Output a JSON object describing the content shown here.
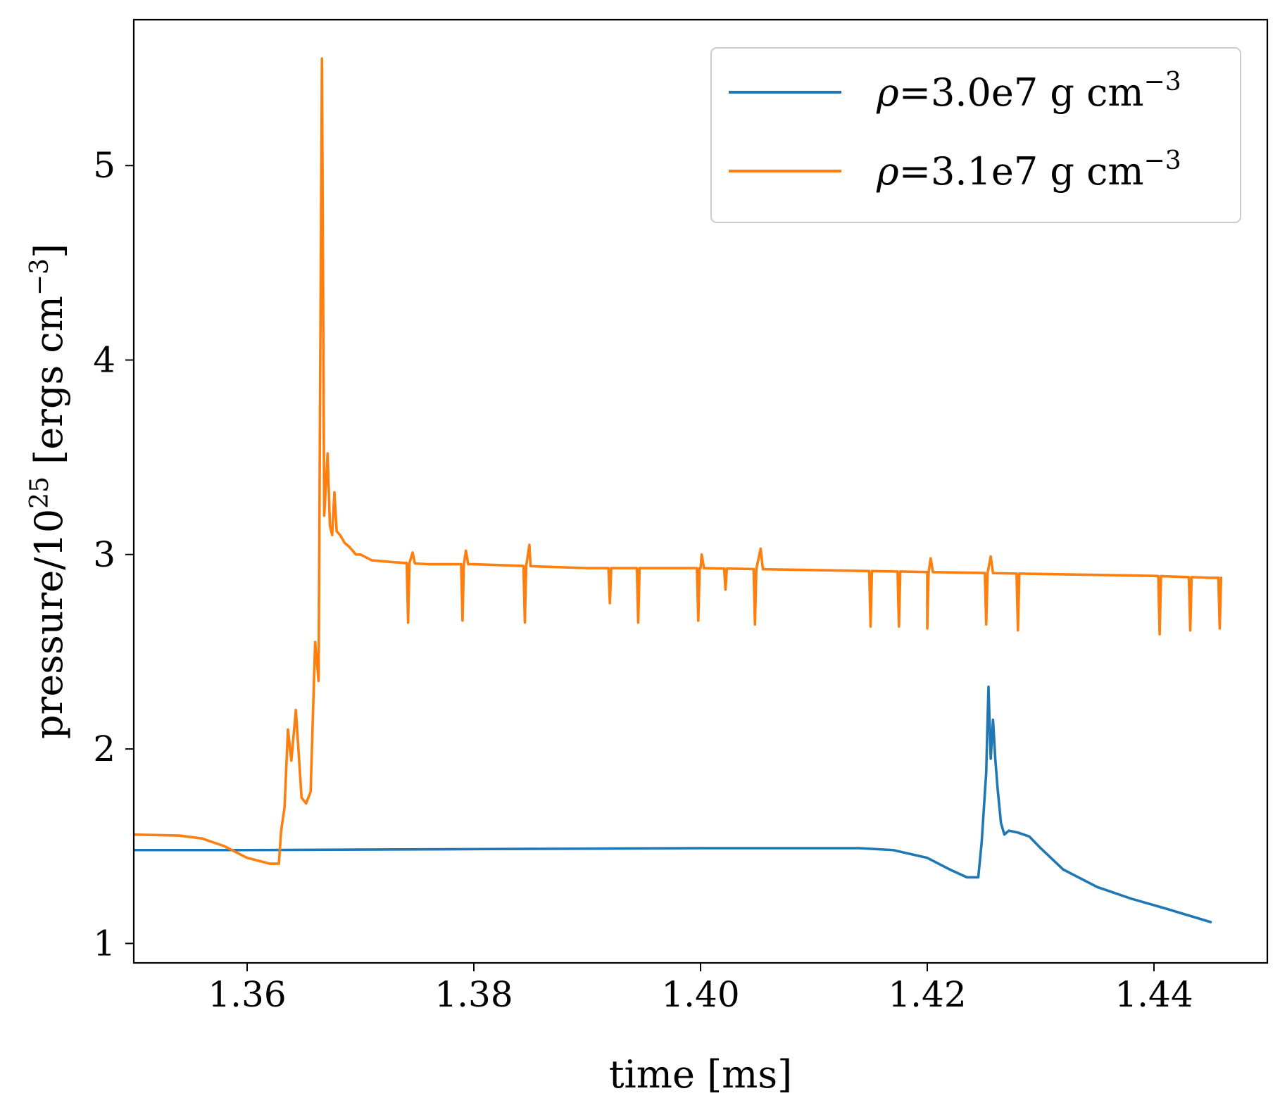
{
  "chart_data": {
    "type": "line",
    "title": "",
    "xlabel": "time [ms]",
    "ylabel_parts": {
      "base": "pressure/10",
      "exp": "25",
      "unit": " [ergs cm",
      "unit_exp": "−3",
      "close": "]"
    },
    "xlim": [
      1.35,
      1.45
    ],
    "ylim": [
      0.9,
      5.75
    ],
    "xticks": [
      1.36,
      1.38,
      1.4,
      1.42,
      1.44
    ],
    "xtick_labels": [
      "1.36",
      "1.38",
      "1.40",
      "1.42",
      "1.44"
    ],
    "yticks": [
      1,
      2,
      3,
      4,
      5
    ],
    "ytick_labels": [
      "1",
      "2",
      "3",
      "4",
      "5"
    ],
    "grid": false,
    "legend_position": "top-right",
    "series": [
      {
        "name": "ρ=3.0e7 g cm−3",
        "legend": {
          "symbol": "ρ",
          "rest": "=3.0e7 g cm",
          "exp": "−3"
        },
        "color": "#1f77b4",
        "x": [
          1.35,
          1.351,
          1.36,
          1.38,
          1.4,
          1.41,
          1.414,
          1.417,
          1.42,
          1.422,
          1.4235,
          1.4245,
          1.4248,
          1.4252,
          1.4254,
          1.4256,
          1.4258,
          1.426,
          1.4262,
          1.4265,
          1.4268,
          1.4272,
          1.428,
          1.429,
          1.43,
          1.432,
          1.435,
          1.438,
          1.441,
          1.445
        ],
        "y": [
          1.48,
          1.48,
          1.48,
          1.485,
          1.49,
          1.49,
          1.49,
          1.48,
          1.44,
          1.38,
          1.34,
          1.34,
          1.52,
          1.88,
          2.32,
          1.95,
          2.15,
          1.95,
          1.8,
          1.62,
          1.56,
          1.58,
          1.57,
          1.55,
          1.49,
          1.38,
          1.29,
          1.23,
          1.18,
          1.11
        ]
      },
      {
        "name": "ρ=3.1e7 g cm−3",
        "legend": {
          "symbol": "ρ",
          "rest": "=3.1e7 g cm",
          "exp": "−3"
        },
        "color": "#ff7f0e",
        "x": [
          1.35,
          1.354,
          1.356,
          1.358,
          1.36,
          1.362,
          1.3628,
          1.363,
          1.3633,
          1.3636,
          1.3639,
          1.3643,
          1.3648,
          1.3652,
          1.3656,
          1.366,
          1.3663,
          1.3666,
          1.3668,
          1.3671,
          1.3673,
          1.3675,
          1.3677,
          1.3679,
          1.3682,
          1.3686,
          1.369,
          1.3696,
          1.37,
          1.371,
          1.373,
          1.376,
          1.38,
          1.385,
          1.39,
          1.395,
          1.4,
          1.41,
          1.42,
          1.43,
          1.44,
          1.445
        ],
        "y": [
          1.56,
          1.555,
          1.54,
          1.5,
          1.44,
          1.41,
          1.41,
          1.58,
          1.7,
          2.1,
          1.94,
          2.2,
          1.75,
          1.72,
          1.78,
          2.55,
          2.35,
          5.55,
          3.2,
          3.52,
          3.15,
          3.1,
          3.32,
          3.12,
          3.1,
          3.06,
          3.04,
          3.0,
          3.0,
          2.97,
          2.96,
          2.95,
          2.95,
          2.94,
          2.93,
          2.93,
          2.93,
          2.92,
          2.91,
          2.9,
          2.89,
          2.88
        ],
        "dips": [
          {
            "x": 1.3742,
            "y": 2.65
          },
          {
            "x": 1.379,
            "y": 2.66
          },
          {
            "x": 1.3845,
            "y": 2.65
          },
          {
            "x": 1.392,
            "y": 2.75
          },
          {
            "x": 1.3945,
            "y": 2.65
          },
          {
            "x": 1.3998,
            "y": 2.66
          },
          {
            "x": 1.4022,
            "y": 2.82
          },
          {
            "x": 1.4048,
            "y": 2.64
          },
          {
            "x": 1.415,
            "y": 2.63
          },
          {
            "x": 1.4175,
            "y": 2.63
          },
          {
            "x": 1.42,
            "y": 2.62
          },
          {
            "x": 1.4252,
            "y": 2.64
          },
          {
            "x": 1.428,
            "y": 2.61
          },
          {
            "x": 1.4405,
            "y": 2.59
          },
          {
            "x": 1.4432,
            "y": 2.61
          },
          {
            "x": 1.4458,
            "y": 2.62
          }
        ],
        "bumps": [
          {
            "x": 1.3745,
            "y": 3.01
          },
          {
            "x": 1.3792,
            "y": 3.02
          },
          {
            "x": 1.3848,
            "y": 3.05
          },
          {
            "x": 1.4,
            "y": 3.0
          },
          {
            "x": 1.4052,
            "y": 3.03
          },
          {
            "x": 1.4202,
            "y": 2.98
          },
          {
            "x": 1.4255,
            "y": 2.99
          }
        ]
      }
    ]
  }
}
